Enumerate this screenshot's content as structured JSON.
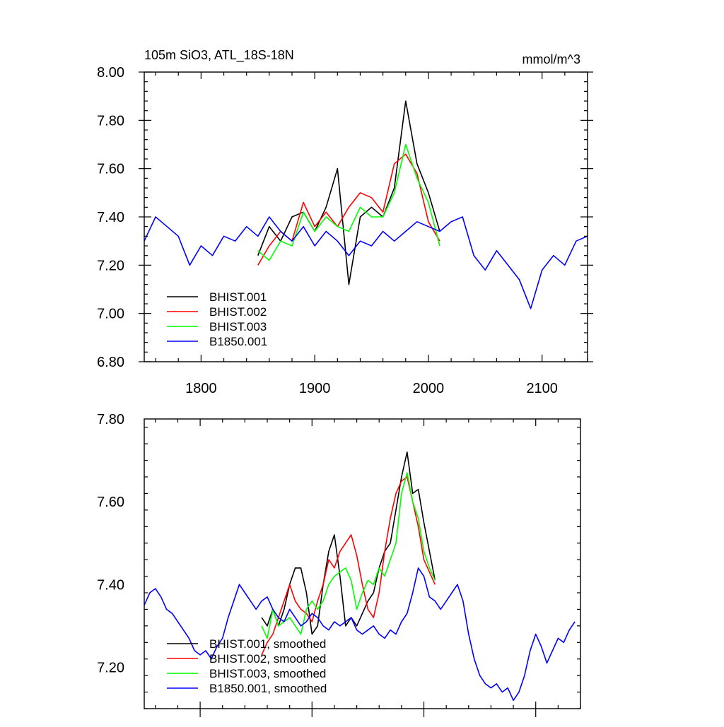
{
  "chart_data": [
    {
      "type": "line",
      "title": "105m SiO3, ATL_18S-18N",
      "units": "mmol/m^3",
      "xlabel": "",
      "ylabel": "",
      "xlim": [
        1750,
        2140
      ],
      "ylim": [
        6.8,
        8.0
      ],
      "x_ticks": [
        1800,
        1900,
        2000,
        2100
      ],
      "x_tick_labels": [
        "1800",
        "1900",
        "2000",
        "2100"
      ],
      "y_ticks": [
        6.8,
        7.0,
        7.2,
        7.4,
        7.6,
        7.8,
        8.0
      ],
      "y_tick_labels": [
        "6.80",
        "7.00",
        "7.20",
        "7.40",
        "7.60",
        "7.80",
        "8.00"
      ],
      "legend_position": "bottom-left",
      "series": [
        {
          "name": "BHIST.001",
          "color": "#000000",
          "x": [
            1850,
            1860,
            1870,
            1880,
            1890,
            1900,
            1910,
            1920,
            1930,
            1940,
            1950,
            1960,
            1970,
            1980,
            1990,
            2000,
            2010
          ],
          "values": [
            7.24,
            7.36,
            7.3,
            7.4,
            7.42,
            7.34,
            7.44,
            7.6,
            7.12,
            7.4,
            7.44,
            7.4,
            7.52,
            7.88,
            7.62,
            7.5,
            7.34
          ]
        },
        {
          "name": "BHIST.002",
          "color": "#ff0000",
          "x": [
            1850,
            1860,
            1870,
            1880,
            1890,
            1900,
            1910,
            1920,
            1930,
            1940,
            1950,
            1960,
            1970,
            1980,
            1990,
            2000,
            2010
          ],
          "values": [
            7.2,
            7.28,
            7.34,
            7.3,
            7.46,
            7.36,
            7.42,
            7.36,
            7.44,
            7.5,
            7.48,
            7.42,
            7.62,
            7.66,
            7.58,
            7.38,
            7.3
          ]
        },
        {
          "name": "BHIST.003",
          "color": "#00ff00",
          "x": [
            1850,
            1860,
            1870,
            1880,
            1890,
            1900,
            1910,
            1920,
            1930,
            1940,
            1950,
            1960,
            1970,
            1980,
            1990,
            2000,
            2010
          ],
          "values": [
            7.26,
            7.22,
            7.3,
            7.28,
            7.42,
            7.34,
            7.4,
            7.36,
            7.34,
            7.44,
            7.4,
            7.4,
            7.5,
            7.7,
            7.56,
            7.46,
            7.28
          ]
        },
        {
          "name": "B1850.001",
          "color": "#0000ff",
          "x": [
            1750,
            1760,
            1770,
            1780,
            1790,
            1800,
            1810,
            1820,
            1830,
            1840,
            1850,
            1860,
            1870,
            1880,
            1890,
            1900,
            1910,
            1920,
            1930,
            1940,
            1950,
            1960,
            1970,
            1980,
            1990,
            2000,
            2010,
            2020,
            2030,
            2040,
            2050,
            2060,
            2070,
            2080,
            2090,
            2100,
            2110,
            2120,
            2130,
            2140
          ],
          "values": [
            7.3,
            7.4,
            7.36,
            7.32,
            7.2,
            7.28,
            7.24,
            7.32,
            7.3,
            7.36,
            7.32,
            7.4,
            7.34,
            7.3,
            7.36,
            7.28,
            7.34,
            7.3,
            7.24,
            7.3,
            7.28,
            7.34,
            7.3,
            7.34,
            7.38,
            7.36,
            7.34,
            7.38,
            7.4,
            7.24,
            7.18,
            7.26,
            7.2,
            7.14,
            7.02,
            7.18,
            7.24,
            7.2,
            7.3,
            7.32
          ]
        }
      ]
    },
    {
      "type": "line",
      "title": "",
      "xlabel": "",
      "ylabel": "",
      "xlim": [
        1750,
        2140
      ],
      "ylim": [
        7.1,
        7.8
      ],
      "x_ticks": [
        1800,
        1900,
        2000,
        2100
      ],
      "y_ticks": [
        7.2,
        7.4,
        7.6,
        7.8
      ],
      "y_tick_labels": [
        "7.20",
        "7.40",
        "7.60",
        "7.80"
      ],
      "legend_position": "bottom-left",
      "series": [
        {
          "name": "BHIST.001, smoothed",
          "color": "#000000",
          "x": [
            1855,
            1860,
            1865,
            1870,
            1875,
            1880,
            1885,
            1890,
            1895,
            1900,
            1905,
            1910,
            1915,
            1920,
            1925,
            1930,
            1935,
            1940,
            1945,
            1950,
            1955,
            1960,
            1965,
            1970,
            1975,
            1980,
            1985,
            1990,
            1995,
            2000,
            2005,
            2010
          ],
          "values": [
            7.32,
            7.3,
            7.34,
            7.3,
            7.34,
            7.4,
            7.44,
            7.44,
            7.38,
            7.28,
            7.3,
            7.4,
            7.48,
            7.52,
            7.42,
            7.3,
            7.32,
            7.3,
            7.33,
            7.36,
            7.38,
            7.44,
            7.48,
            7.5,
            7.58,
            7.66,
            7.72,
            7.62,
            7.63,
            7.55,
            7.48,
            7.41
          ]
        },
        {
          "name": "BHIST.002, smoothed",
          "color": "#ff0000",
          "x": [
            1855,
            1860,
            1865,
            1870,
            1875,
            1880,
            1885,
            1890,
            1895,
            1900,
            1905,
            1910,
            1915,
            1920,
            1925,
            1930,
            1935,
            1940,
            1945,
            1950,
            1955,
            1960,
            1965,
            1970,
            1975,
            1980,
            1985,
            1990,
            1995,
            2000,
            2005,
            2010
          ],
          "values": [
            7.23,
            7.26,
            7.28,
            7.32,
            7.36,
            7.4,
            7.36,
            7.34,
            7.33,
            7.31,
            7.36,
            7.4,
            7.46,
            7.44,
            7.48,
            7.5,
            7.52,
            7.47,
            7.4,
            7.34,
            7.32,
            7.38,
            7.48,
            7.56,
            7.62,
            7.65,
            7.66,
            7.6,
            7.54,
            7.46,
            7.43,
            7.4
          ]
        },
        {
          "name": "BHIST.003, smoothed",
          "color": "#00ff00",
          "x": [
            1855,
            1860,
            1865,
            1870,
            1875,
            1880,
            1885,
            1890,
            1895,
            1900,
            1905,
            1910,
            1915,
            1920,
            1925,
            1930,
            1935,
            1940,
            1945,
            1950,
            1955,
            1960,
            1965,
            1970,
            1975,
            1980,
            1985,
            1990,
            1995,
            2000,
            2005,
            2010
          ],
          "values": [
            7.3,
            7.27,
            7.34,
            7.3,
            7.31,
            7.32,
            7.3,
            7.28,
            7.34,
            7.36,
            7.34,
            7.36,
            7.4,
            7.42,
            7.43,
            7.44,
            7.41,
            7.34,
            7.38,
            7.41,
            7.4,
            7.44,
            7.42,
            7.46,
            7.5,
            7.62,
            7.67,
            7.6,
            7.56,
            7.48,
            7.44,
            7.41
          ]
        },
        {
          "name": "B1850.001, smoothed",
          "color": "#0000ff",
          "x": [
            1750,
            1755,
            1760,
            1765,
            1770,
            1775,
            1780,
            1785,
            1790,
            1795,
            1800,
            1805,
            1810,
            1815,
            1820,
            1825,
            1830,
            1835,
            1840,
            1845,
            1850,
            1855,
            1860,
            1865,
            1870,
            1875,
            1880,
            1885,
            1890,
            1895,
            1900,
            1905,
            1910,
            1915,
            1920,
            1925,
            1930,
            1935,
            1940,
            1945,
            1950,
            1955,
            1960,
            1965,
            1970,
            1975,
            1980,
            1985,
            1990,
            1995,
            2000,
            2005,
            2010,
            2015,
            2020,
            2025,
            2030,
            2035,
            2040,
            2045,
            2050,
            2055,
            2060,
            2065,
            2070,
            2075,
            2080,
            2085,
            2090,
            2095,
            2100,
            2105,
            2110,
            2115,
            2120,
            2125,
            2130,
            2135
          ],
          "values": [
            7.35,
            7.38,
            7.39,
            7.37,
            7.34,
            7.33,
            7.31,
            7.29,
            7.27,
            7.24,
            7.23,
            7.24,
            7.22,
            7.25,
            7.27,
            7.32,
            7.36,
            7.4,
            7.38,
            7.36,
            7.34,
            7.36,
            7.37,
            7.34,
            7.32,
            7.31,
            7.34,
            7.32,
            7.3,
            7.31,
            7.33,
            7.32,
            7.3,
            7.29,
            7.31,
            7.3,
            7.31,
            7.32,
            7.29,
            7.28,
            7.29,
            7.3,
            7.28,
            7.27,
            7.29,
            7.28,
            7.31,
            7.33,
            7.38,
            7.44,
            7.42,
            7.37,
            7.36,
            7.34,
            7.36,
            7.38,
            7.4,
            7.36,
            7.28,
            7.22,
            7.18,
            7.16,
            7.15,
            7.16,
            7.14,
            7.15,
            7.12,
            7.14,
            7.18,
            7.24,
            7.28,
            7.25,
            7.21,
            7.24,
            7.27,
            7.26,
            7.29,
            7.31
          ]
        }
      ]
    }
  ]
}
